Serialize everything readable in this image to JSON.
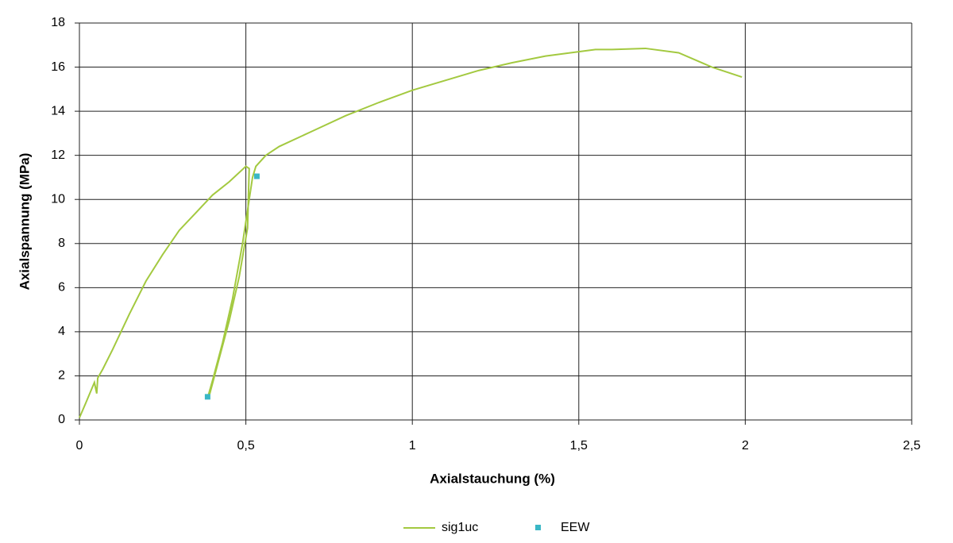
{
  "chart_data": {
    "type": "line",
    "xlabel": "Axialstauchung (%)",
    "ylabel": "Axialspannung (MPa)",
    "xlim": [
      0,
      2.5
    ],
    "xticks": [
      0,
      {
        "value": 0.5,
        "label": "0,5"
      },
      1,
      {
        "value": 1.5,
        "label": "1,5"
      },
      2,
      {
        "value": 2.5,
        "label": "2,5"
      }
    ],
    "ylim": [
      0,
      18
    ],
    "yticks": [
      0,
      2,
      4,
      6,
      8,
      10,
      12,
      14,
      16,
      18
    ],
    "grid": true,
    "legend": "bottom",
    "series": [
      {
        "name": "sig1uc",
        "type": "line",
        "color": "#a3c940",
        "x": [
          0,
          0.02,
          0.045,
          0.052,
          0.055,
          0.07,
          0.1,
          0.15,
          0.2,
          0.25,
          0.3,
          0.35,
          0.4,
          0.45,
          0.5,
          0.51,
          0.505,
          0.48,
          0.45,
          0.42,
          0.39,
          0.385,
          0.4,
          0.43,
          0.46,
          0.49,
          0.51,
          0.52,
          0.53,
          0.56,
          0.6,
          0.7,
          0.8,
          0.9,
          1.0,
          1.1,
          1.2,
          1.3,
          1.4,
          1.5,
          1.55,
          1.6,
          1.7,
          1.8,
          1.9,
          1.99
        ],
        "values": [
          0.1,
          0.8,
          1.7,
          1.2,
          1.9,
          2.3,
          3.2,
          4.8,
          6.3,
          7.5,
          8.6,
          9.4,
          10.2,
          10.8,
          11.5,
          11.4,
          8.7,
          6.5,
          4.5,
          2.8,
          1.1,
          1.0,
          1.8,
          3.5,
          5.5,
          8.0,
          10.0,
          11.0,
          11.5,
          12.0,
          12.4,
          13.1,
          13.8,
          14.4,
          14.95,
          15.4,
          15.85,
          16.2,
          16.5,
          16.7,
          16.8,
          16.8,
          16.85,
          16.65,
          16.0,
          15.55
        ]
      },
      {
        "name": "EEW",
        "type": "scatter",
        "color": "#3ab7c6",
        "x": [
          0.385,
          0.533
        ],
        "values": [
          1.05,
          11.05
        ]
      }
    ]
  }
}
